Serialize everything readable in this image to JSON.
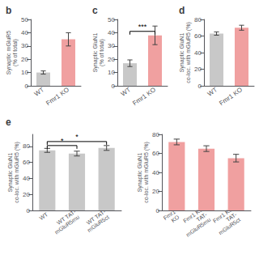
{
  "chart_data": [
    {
      "type": "bar",
      "title": "b",
      "ylabel": "Synaptic mGluR5\n(% of total)",
      "categories": [
        "WT",
        "Fmr1 KO"
      ],
      "values": [
        10,
        35
      ],
      "errors": [
        1.2,
        5
      ],
      "colors": [
        "#c8c8c8",
        "#f0a0a0"
      ],
      "ylim": [
        0,
        50
      ],
      "yticks": [
        0,
        10,
        20,
        30,
        40,
        50
      ],
      "grid": false
    },
    {
      "type": "bar",
      "title": "c",
      "ylabel": "Synaptic GluN1\n(% of total)",
      "categories": [
        "WT",
        "Fmr1 KO"
      ],
      "values": [
        17,
        38
      ],
      "errors": [
        2.5,
        7
      ],
      "colors": [
        "#c8c8c8",
        "#f0a0a0"
      ],
      "ylim": [
        0,
        50
      ],
      "yticks": [
        0,
        10,
        20,
        30,
        40,
        50
      ],
      "grid": false,
      "annotations": [
        {
          "text": "***",
          "x": [
            "WT",
            "Fmr1 KO"
          ],
          "y": 41
        }
      ]
    },
    {
      "type": "bar",
      "title": "d",
      "ylabel": "Synaptic GluN1\nco-loc. with mGluR5 (%)",
      "categories": [
        "WT",
        "Fmr1 KO"
      ],
      "values": [
        63,
        70
      ],
      "errors": [
        2,
        3
      ],
      "colors": [
        "#c8c8c8",
        "#f0a0a0"
      ],
      "ylim": [
        0,
        80
      ],
      "yticks": [
        0,
        20,
        40,
        60,
        80
      ],
      "grid": false
    },
    {
      "type": "bar",
      "title": "e",
      "ylabel": "Synaptic GluN1\nco-loc. with mGluR5 (%)",
      "categories": [
        "WT",
        "WT TAT-\nmGluR5mu",
        "WT TAT-\nmGluR5ct"
      ],
      "values": [
        75,
        71,
        78
      ],
      "errors": [
        2.5,
        3,
        3
      ],
      "colors": [
        "#c8c8c8",
        "#c8c8c8",
        "#c8c8c8"
      ],
      "ylim": [
        0,
        95
      ],
      "yticks": [
        0,
        20,
        40,
        60,
        80
      ],
      "grid": false,
      "annotations": [
        {
          "text": "*",
          "x": [
            "WT",
            "WT TAT-\nmGluR5mu"
          ],
          "y": 81
        },
        {
          "text": "*",
          "x": [
            "WT",
            "WT TAT-\nmGluR5ct"
          ],
          "y": 86
        }
      ]
    },
    {
      "type": "bar",
      "ylabel": "Synaptic GluN1\nco-loc. with mGluR5 (%)",
      "categories": [
        "Fmr1\nKO",
        "Fmr1 KO\nTAT-\nmGluR5mu",
        "Fmr1 KO\nTAT-\nmGluR5ct"
      ],
      "values": [
        72,
        65,
        55
      ],
      "errors": [
        3,
        3,
        4
      ],
      "colors": [
        "#f0a0a0",
        "#f0a0a0",
        "#f0a0a0"
      ],
      "ylim": [
        0,
        80
      ],
      "yticks": [
        0,
        20,
        40,
        60,
        80
      ],
      "grid": false
    }
  ]
}
